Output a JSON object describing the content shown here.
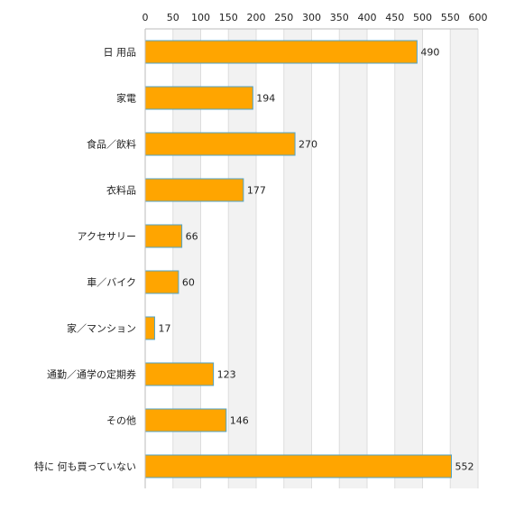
{
  "chart_data": {
    "type": "bar",
    "orientation": "horizontal",
    "categories": [
      "日 用品",
      "家電",
      "食品／飲料",
      "衣料品",
      "アクセサリー",
      "車／バイク",
      "家／マンション",
      "通勤／通学の定期券",
      "その他",
      "特に 何も買っていない"
    ],
    "values": [
      490,
      194,
      270,
      177,
      66,
      60,
      17,
      123,
      146,
      552
    ],
    "data_labels": [
      "490",
      "194",
      "270",
      "177",
      "66",
      "60",
      "17",
      "123",
      "146",
      "552"
    ],
    "xticks": [
      "0",
      "50",
      "100",
      "150",
      "200",
      "250",
      "300",
      "350",
      "400",
      "450",
      "500",
      "550",
      "600"
    ],
    "xlim": [
      0,
      600
    ],
    "x_axis_position": "top",
    "grid": true,
    "title": "",
    "xlabel": "",
    "ylabel": "",
    "colors": {
      "bar_fill": "#FFA500",
      "bar_stroke": "#4FA3C8",
      "band_alt": "#F2F2F2",
      "grid_line": "#DDDDDD",
      "axis_line": "#BBBBBB"
    }
  }
}
